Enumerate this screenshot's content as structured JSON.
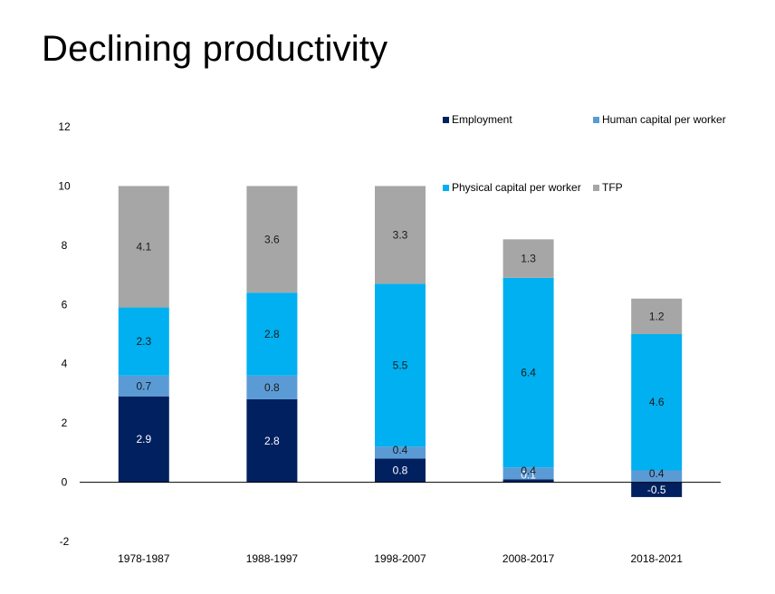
{
  "title": "Declining productivity",
  "chart_data": {
    "type": "bar",
    "stacked": true,
    "categories": [
      "1978-1987",
      "1988-1997",
      "1998-2007",
      "2008-2017",
      "2018-2021"
    ],
    "series": [
      {
        "name": "Employment",
        "color": "#002060",
        "values": [
          2.9,
          2.8,
          0.8,
          0.1,
          -0.5
        ]
      },
      {
        "name": "Human capital per worker",
        "color": "#5B9BD5",
        "values": [
          0.7,
          0.8,
          0.4,
          0.4,
          0.4
        ]
      },
      {
        "name": "Physical capital per worker",
        "color": "#00B0F0",
        "values": [
          2.3,
          2.8,
          5.5,
          6.4,
          4.6
        ]
      },
      {
        "name": "TFP",
        "color": "#A6A6A6",
        "values": [
          4.1,
          3.6,
          3.3,
          1.3,
          1.2
        ]
      }
    ],
    "ylim": [
      -2,
      12
    ],
    "yticks": [
      -2,
      0,
      2,
      4,
      6,
      8,
      10,
      12
    ],
    "legend": "top-right",
    "grid": false
  }
}
